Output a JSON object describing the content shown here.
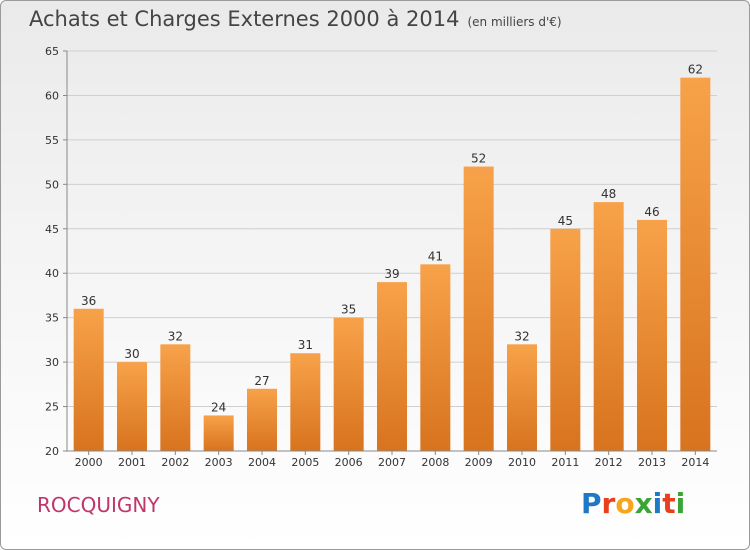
{
  "title": "Achats et Charges Externes 2000 à 2014",
  "unit": "(en milliers d'€)",
  "commune": "ROCQUIGNY",
  "logo": {
    "text": "Proxiti",
    "colors": [
      "#1f77c8",
      "#e8401c",
      "#f7a51a",
      "#3aa535",
      "#1f77c8",
      "#e8401c",
      "#3aa535"
    ]
  },
  "chart_data": {
    "type": "bar",
    "categories": [
      "2000",
      "2001",
      "2002",
      "2003",
      "2004",
      "2005",
      "2006",
      "2007",
      "2008",
      "2009",
      "2010",
      "2011",
      "2012",
      "2013",
      "2014"
    ],
    "values": [
      36,
      30,
      32,
      24,
      27,
      31,
      35,
      39,
      41,
      52,
      32,
      45,
      48,
      46,
      62
    ],
    "ylim": [
      20,
      65
    ],
    "yticks": [
      20,
      25,
      30,
      35,
      40,
      45,
      50,
      55,
      60,
      65
    ],
    "grid": true,
    "bar_color_top": "#f7a24a",
    "bar_color_bottom": "#d8731e"
  }
}
